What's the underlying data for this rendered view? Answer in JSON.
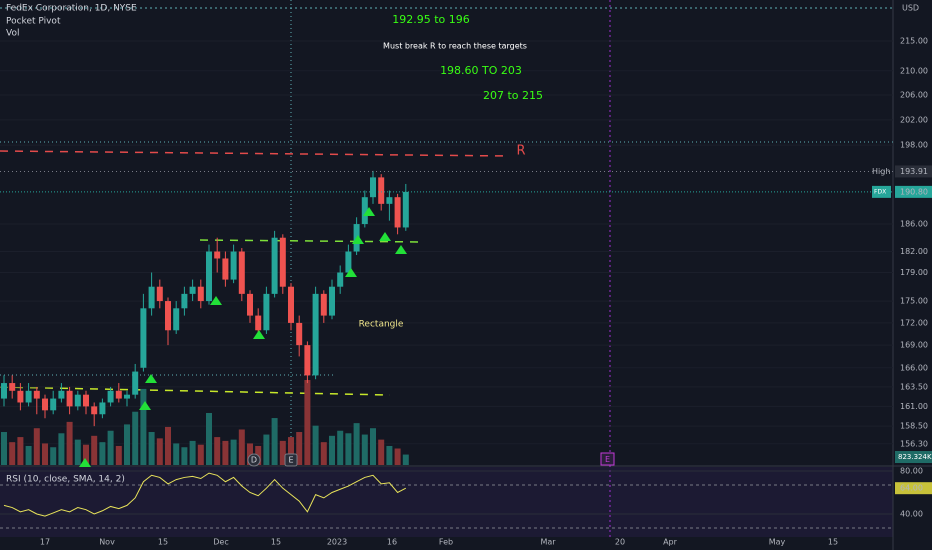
{
  "chart_data": {
    "type": "candlestick",
    "title": "FedEx Corporation, 1D, NYSE",
    "legend_items": [
      "Pocket Pivot",
      "Vol"
    ],
    "currency": "USD",
    "open": [
      162,
      164,
      163,
      161.5,
      163,
      162,
      160.5,
      162,
      163,
      161,
      162.5,
      161,
      160,
      161.5,
      163,
      162,
      162.5,
      166,
      174,
      177,
      175,
      171,
      174,
      176,
      177,
      175,
      182,
      181,
      178,
      182,
      176,
      173,
      171,
      176,
      184,
      177,
      172,
      169,
      165,
      176,
      173,
      177,
      179,
      182,
      186,
      190,
      193,
      189,
      190,
      185.5
    ],
    "high": [
      165,
      165,
      164,
      164,
      163.5,
      162.5,
      163,
      164,
      163.5,
      163,
      163,
      161.5,
      162,
      163.5,
      164,
      163,
      166.5,
      176,
      179,
      178,
      175.5,
      175,
      177,
      178,
      178,
      183,
      184,
      182,
      183,
      182.5,
      176.5,
      174,
      177,
      185,
      184.5,
      177.5,
      173,
      169.5,
      177,
      176.5,
      178,
      180,
      183,
      187,
      191,
      194,
      193.5,
      191,
      190.5,
      192
    ],
    "low": [
      161,
      162,
      160.5,
      161,
      160,
      159.5,
      160,
      161.5,
      160,
      160.5,
      160,
      158.5,
      159.5,
      161,
      161.5,
      161,
      162,
      165.5,
      173,
      174,
      169,
      170.5,
      173,
      175,
      174,
      174.5,
      179,
      177,
      177.5,
      175,
      172,
      170,
      170.5,
      175.5,
      176,
      171,
      167.5,
      164,
      164.5,
      172,
      172.5,
      176,
      178.5,
      181.5,
      185.5,
      189,
      188,
      186.5,
      184.5,
      185
    ],
    "close": [
      164,
      163,
      161.5,
      163,
      162,
      160.5,
      162,
      163,
      161,
      162.5,
      161,
      160,
      161.5,
      163,
      162,
      162.5,
      165.5,
      174,
      177,
      175,
      171,
      174,
      176,
      177,
      175,
      182,
      181,
      178,
      182,
      176,
      173,
      171,
      176,
      184,
      177,
      172,
      169,
      165,
      176,
      173,
      177,
      179,
      182,
      186,
      190,
      193,
      189,
      190,
      185.5,
      190.8
    ],
    "volume": [
      2600,
      1800,
      2200,
      1500,
      2900,
      1700,
      1400,
      2500,
      3400,
      2000,
      1600,
      2300,
      1800,
      2700,
      1500,
      3200,
      4200,
      6000,
      2600,
      2100,
      3000,
      1700,
      1400,
      1900,
      1600,
      4100,
      2200,
      1900,
      2000,
      2800,
      1700,
      1500,
      2400,
      3700,
      1900,
      2200,
      2600,
      6700,
      3100,
      1800,
      2300,
      2700,
      2500,
      3300,
      2400,
      2900,
      2000,
      1500,
      1300,
      823.324
    ],
    "volume_label": "823.324K",
    "rsi_title": "RSI (10, close, SMA, 14, 2)",
    "rsi": [
      48,
      46,
      42,
      44,
      40,
      38,
      41,
      44,
      42,
      46,
      44,
      40,
      43,
      47,
      45,
      48,
      55,
      70,
      76,
      74,
      68,
      72,
      74,
      75,
      73,
      78,
      76,
      70,
      74,
      66,
      60,
      57,
      64,
      72,
      64,
      58,
      52,
      42,
      58,
      55,
      60,
      63,
      66,
      70,
      74,
      76,
      68,
      69,
      60,
      64
    ],
    "rsi_label": "64.00",
    "rsi_ylim": [
      18.6,
      83.7
    ],
    "rsi_yticks": [
      {
        "value": 80,
        "label": "80.00"
      },
      {
        "value": 40,
        "label": "40.00"
      }
    ],
    "log": true,
    "ylim": [
      153.7,
      222.1
    ],
    "yticks": [
      {
        "value": 215,
        "label": "215.00"
      },
      {
        "value": 210,
        "label": "210.00"
      },
      {
        "value": 206,
        "label": "206.00"
      },
      {
        "value": 202,
        "label": "202.00"
      },
      {
        "value": 198,
        "label": "198.00"
      },
      {
        "value": 186,
        "label": "186.00"
      },
      {
        "value": 182,
        "label": "182.00"
      },
      {
        "value": 179,
        "label": "179.00"
      },
      {
        "value": 175,
        "label": "175.00"
      },
      {
        "value": 172,
        "label": "172.00"
      },
      {
        "value": 169,
        "label": "169.00"
      },
      {
        "value": 166,
        "label": "166.00"
      },
      {
        "value": 163.5,
        "label": "163.50"
      },
      {
        "value": 161,
        "label": "161.00"
      },
      {
        "value": 158.5,
        "label": "158.50"
      },
      {
        "value": 156.3,
        "label": "156.30"
      }
    ],
    "high_marker": {
      "name": "High",
      "value": 193.91,
      "label": "193.91"
    },
    "last_marker": {
      "name": "FDX",
      "value": 190.8,
      "label": "190.80"
    },
    "x_axis_labels": [
      "17",
      "Nov",
      "15",
      "Dec",
      "15",
      "2023",
      "16",
      "Feb",
      "Mar",
      "20",
      "Apr",
      "May",
      "15"
    ],
    "annotations": [
      "192.95 to 196",
      "Must break R to reach these targets",
      "198.60 TO 203",
      "207 to 215",
      "R",
      "Rectangle"
    ],
    "events": [
      "D",
      "E"
    ],
    "up_color": "#26a69a",
    "down_color": "#ef5350"
  }
}
